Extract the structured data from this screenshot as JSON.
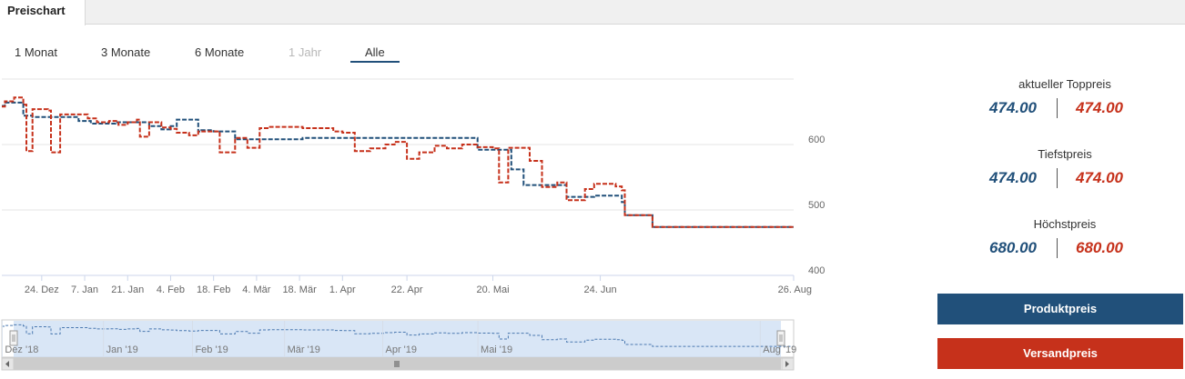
{
  "tab": {
    "label": "Preischart"
  },
  "ranges": [
    "1 Monat",
    "3 Monate",
    "6 Monate",
    "1 Jahr",
    "Alle"
  ],
  "stats": {
    "current_label": "aktueller Toppreis",
    "current_product": "474.00",
    "current_shipping": "474.00",
    "low_label": "Tiefstpreis",
    "low_product": "474.00",
    "low_shipping": "474.00",
    "high_label": "Höchstpreis",
    "high_product": "680.00",
    "high_shipping": "680.00"
  },
  "buttons": {
    "product": "Produktpreis",
    "shipping": "Versandpreis"
  },
  "colors": {
    "product": "#21507a",
    "shipping": "#c6311b"
  },
  "chart_data": {
    "type": "line",
    "ylim": [
      400,
      700
    ],
    "yticks": [
      400,
      500,
      600
    ],
    "xticks": [
      "24. Dez",
      "7. Jan",
      "21. Jan",
      "4. Feb",
      "18. Feb",
      "4. Mär",
      "18. Mär",
      "1. Apr",
      "22. Apr",
      "20. Mai",
      "24. Jun",
      "26. Aug"
    ],
    "navigator_labels": [
      "Dez '18",
      "Jan '19",
      "Feb '19",
      "Mär '19",
      "Apr '19",
      "Mai '19",
      "Aug '19"
    ],
    "series": [
      {
        "name": "Produktpreis",
        "points": [
          [
            "2018-12-11",
            659
          ],
          [
            "2018-12-12",
            664
          ],
          [
            "2018-12-15",
            664
          ],
          [
            "2018-12-18",
            644
          ],
          [
            "2018-12-19",
            644
          ],
          [
            "2018-12-21",
            642
          ],
          [
            "2019-01-02",
            642
          ],
          [
            "2019-01-05",
            636
          ],
          [
            "2019-01-06",
            636
          ],
          [
            "2019-01-09",
            632
          ],
          [
            "2019-01-17",
            634
          ],
          [
            "2019-01-28",
            628
          ],
          [
            "2019-02-01",
            623
          ],
          [
            "2019-02-04",
            628
          ],
          [
            "2019-02-06",
            638
          ],
          [
            "2019-02-13",
            620
          ],
          [
            "2019-02-14",
            622
          ],
          [
            "2019-02-18",
            620
          ],
          [
            "2019-02-25",
            608
          ],
          [
            "2019-03-08",
            608
          ],
          [
            "2019-03-19",
            610
          ],
          [
            "2019-03-29",
            610
          ],
          [
            "2019-04-01",
            610
          ],
          [
            "2019-05-15",
            592
          ],
          [
            "2019-05-20",
            592
          ],
          [
            "2019-05-26",
            562
          ],
          [
            "2019-05-30",
            538
          ],
          [
            "2019-06-13",
            520
          ],
          [
            "2019-06-22",
            522
          ],
          [
            "2019-06-29",
            522
          ],
          [
            "2019-07-01",
            512
          ],
          [
            "2019-07-02",
            492
          ],
          [
            "2019-07-10",
            492
          ],
          [
            "2019-07-11",
            474
          ]
        ]
      },
      {
        "name": "Versandpreis",
        "points": [
          [
            "2018-12-11",
            658
          ],
          [
            "2018-12-12",
            666
          ],
          [
            "2018-12-15",
            672
          ],
          [
            "2018-12-18",
            661
          ],
          [
            "2018-12-19",
            590
          ],
          [
            "2018-12-20",
            590
          ],
          [
            "2018-12-21",
            654
          ],
          [
            "2018-12-26",
            652
          ],
          [
            "2018-12-27",
            588
          ],
          [
            "2018-12-29",
            588
          ],
          [
            "2018-12-30",
            646
          ],
          [
            "2019-01-06",
            646
          ],
          [
            "2019-01-08",
            640
          ],
          [
            "2019-01-11",
            634
          ],
          [
            "2019-01-15",
            636
          ],
          [
            "2019-01-18",
            630
          ],
          [
            "2019-01-21",
            634
          ],
          [
            "2019-01-24",
            638
          ],
          [
            "2019-01-25",
            612
          ],
          [
            "2019-01-27",
            612
          ],
          [
            "2019-01-28",
            634
          ],
          [
            "2019-02-01",
            626
          ],
          [
            "2019-02-04",
            624
          ],
          [
            "2019-02-06",
            618
          ],
          [
            "2019-02-10",
            614
          ],
          [
            "2019-02-13",
            620
          ],
          [
            "2019-02-20",
            588
          ],
          [
            "2019-02-22",
            588
          ],
          [
            "2019-02-25",
            610
          ],
          [
            "2019-02-28",
            610
          ],
          [
            "2019-03-01",
            595
          ],
          [
            "2019-03-02",
            595
          ],
          [
            "2019-03-05",
            625
          ],
          [
            "2019-03-08",
            627
          ],
          [
            "2019-03-19",
            625
          ],
          [
            "2019-03-29",
            620
          ],
          [
            "2019-04-01",
            618
          ],
          [
            "2019-04-05",
            590
          ],
          [
            "2019-04-10",
            594
          ],
          [
            "2019-04-15",
            600
          ],
          [
            "2019-04-18",
            604
          ],
          [
            "2019-04-22",
            578
          ],
          [
            "2019-04-26",
            588
          ],
          [
            "2019-05-01",
            598
          ],
          [
            "2019-05-05",
            594
          ],
          [
            "2019-05-10",
            600
          ],
          [
            "2019-05-15",
            596
          ],
          [
            "2019-05-20",
            594
          ],
          [
            "2019-05-22",
            542
          ],
          [
            "2019-05-25",
            595
          ],
          [
            "2019-06-01",
            575
          ],
          [
            "2019-06-05",
            535
          ],
          [
            "2019-06-10",
            542
          ],
          [
            "2019-06-13",
            515
          ],
          [
            "2019-06-19",
            532
          ],
          [
            "2019-06-22",
            540
          ],
          [
            "2019-06-29",
            536
          ],
          [
            "2019-07-01",
            530
          ],
          [
            "2019-07-02",
            492
          ],
          [
            "2019-07-10",
            492
          ],
          [
            "2019-07-11",
            474
          ]
        ]
      }
    ]
  }
}
